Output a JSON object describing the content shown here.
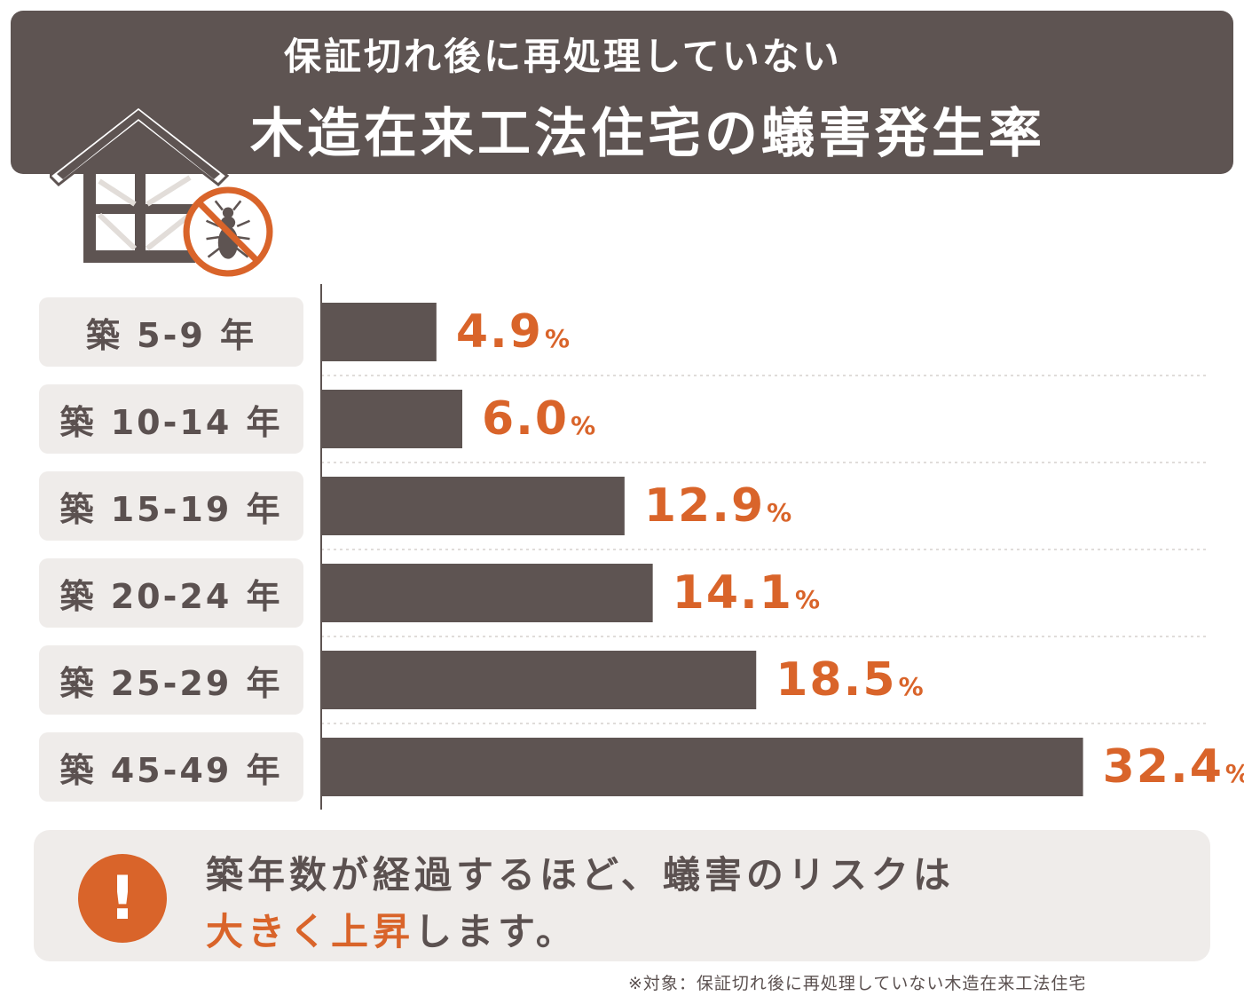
{
  "header": {
    "title_line1": "保証切れ後に再処理していない",
    "title_line2": "木造在来工法住宅の蟻害発生率"
  },
  "icons": {
    "house": "house-icon",
    "no_termite": "no-termite-icon",
    "alert": "exclamation-icon"
  },
  "colors": {
    "bar": "#5e5452",
    "accent": "#d9642a",
    "label_bg": "#efecea"
  },
  "chart_data": {
    "type": "bar",
    "orientation": "horizontal",
    "categories": [
      "築 5-9 年",
      "築 10-14 年",
      "築 15-19 年",
      "築 20-24 年",
      "築 25-29 年",
      "築 45-49 年"
    ],
    "values": [
      4.9,
      6.0,
      12.9,
      14.1,
      18.5,
      32.4
    ],
    "value_labels": [
      "4.9",
      "6.0",
      "12.9",
      "14.1",
      "18.5",
      "32.4"
    ],
    "unit": "%",
    "xlim": [
      0,
      35
    ],
    "grid": false
  },
  "note": {
    "icon_text": "!",
    "line1": "築年数が経過するほど、蟻害のリスクは",
    "line2_accent": "大きく上昇",
    "line2_rest": "します。"
  },
  "footnote": "※対象：保証切れ後に再処理していない木造在来工法住宅"
}
